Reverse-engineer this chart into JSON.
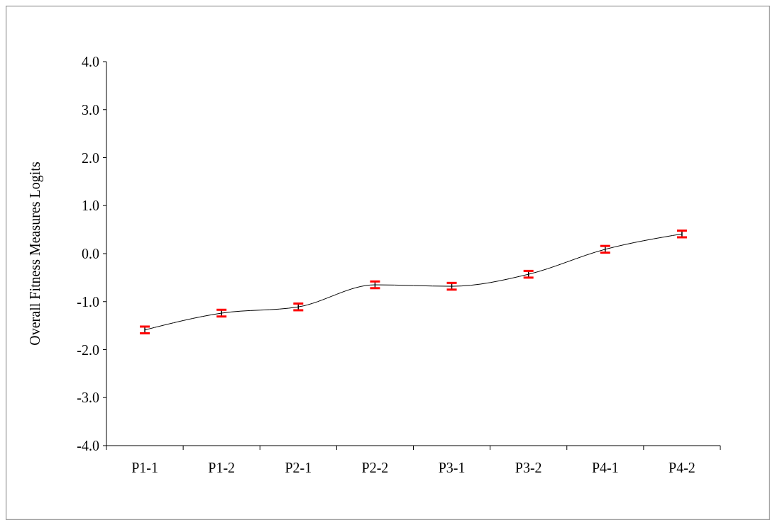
{
  "chart_data": {
    "type": "line",
    "ylabel": "Overall Fitness Measures Logits",
    "categories": [
      "P1-1",
      "P1-2",
      "P2-1",
      "P2-2",
      "P3-1",
      "P3-2",
      "P4-1",
      "P4-2"
    ],
    "series": [
      {
        "color": "#000000",
        "values": [
          -1.59,
          -1.24,
          -1.11,
          -0.65,
          -0.68,
          -0.43,
          0.09,
          0.41
        ],
        "errors": [
          0.07,
          0.07,
          0.07,
          0.07,
          0.07,
          0.07,
          0.07,
          0.07
        ]
      }
    ],
    "ylim": [
      -4,
      4
    ],
    "yticks": [
      {
        "value": -4,
        "label": "-4.0"
      },
      {
        "value": -3,
        "label": "-3.0"
      },
      {
        "value": -2,
        "label": "-2.0"
      },
      {
        "value": -1,
        "label": "-1.0"
      },
      {
        "value": 0,
        "label": "0.0"
      },
      {
        "value": 1,
        "label": "1.0"
      },
      {
        "value": 2,
        "label": "2.0"
      },
      {
        "value": 3,
        "label": "3.0"
      },
      {
        "value": 4,
        "label": "4.0"
      }
    ],
    "grid": false,
    "marker": "none",
    "line_style": "solid"
  }
}
